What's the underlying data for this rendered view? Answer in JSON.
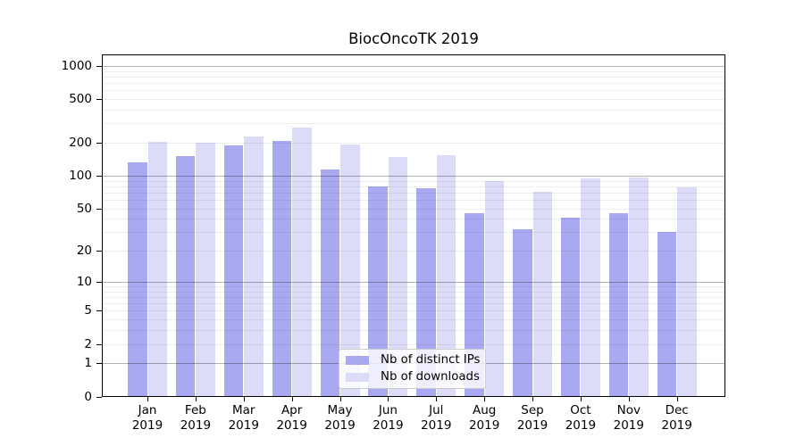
{
  "title": "BiocOncoTK 2019",
  "chart_data": {
    "type": "bar",
    "title": "BiocOncoTK 2019",
    "categories": [
      "Jan 2019",
      "Feb 2019",
      "Mar 2019",
      "Apr 2019",
      "May 2019",
      "Jun 2019",
      "Jul 2019",
      "Aug 2019",
      "Sep 2019",
      "Oct 2019",
      "Nov 2019",
      "Dec 2019"
    ],
    "series": [
      {
        "name": "Nb of distinct IPs",
        "color": "#a9a9f2",
        "values": [
          133,
          151,
          188,
          207,
          114,
          79,
          77,
          45,
          32,
          41,
          45,
          30
        ]
      },
      {
        "name": "Nb of downloads",
        "color": "#dcdcf8",
        "values": [
          205,
          200,
          230,
          277,
          192,
          148,
          154,
          89,
          71,
          95,
          96,
          78
        ]
      }
    ],
    "xlabel": "",
    "ylabel": "",
    "yscale": "log10(value+1)",
    "ylim": [
      0,
      1270
    ],
    "ytick_values": [
      1000,
      500,
      200,
      100,
      50,
      20,
      10,
      5,
      2,
      1,
      0
    ],
    "ytick_labels": [
      "1000",
      "500",
      "200",
      "100",
      "50",
      "20",
      "10",
      "5",
      "2",
      "1",
      "0"
    ],
    "grid": {
      "major_at": [
        1,
        10,
        100,
        1000
      ],
      "minor_at": [
        2,
        3,
        4,
        6,
        7,
        8,
        9,
        20,
        30,
        40,
        60,
        70,
        80,
        90,
        200,
        300,
        400,
        600,
        700,
        800,
        900,
        5,
        50,
        500
      ],
      "orientation": "horizontal"
    },
    "legend_position": "lower center, inside plot"
  },
  "colors": {
    "background": "#ffffff",
    "axis": "#000000",
    "major_grid": "rgba(0,0,0,0.30)",
    "minor_grid": "rgba(0,0,0,0.065)",
    "legend_border": "#cccccc",
    "ips_bar": "#a9a9f2",
    "downloads_bar": "#dcdcf8"
  }
}
